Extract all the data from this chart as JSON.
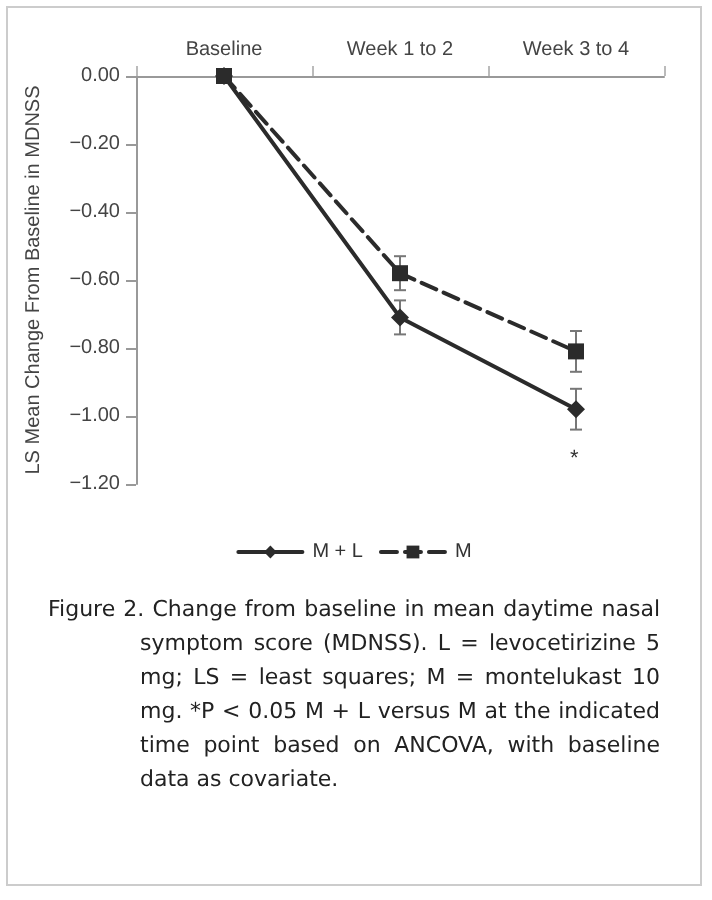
{
  "chart_data": {
    "type": "line",
    "ylabel": "LS Mean Change From Baseline in MDNSS",
    "categories": [
      "Baseline",
      "Week 1 to 2",
      "Week 3 to 4"
    ],
    "series": [
      {
        "name": "M + L",
        "color": "#2b2b2b",
        "marker": "diamond",
        "line_style": "solid",
        "values": [
          0,
          -0.71,
          -0.98
        ],
        "errors": [
          null,
          0.05,
          0.06
        ]
      },
      {
        "name": "M",
        "color": "#2b2b2b",
        "marker": "square",
        "line_style": "dashed",
        "values": [
          0,
          -0.58,
          -0.81
        ],
        "errors": [
          null,
          0.05,
          0.06
        ]
      }
    ],
    "ylim": [
      -1.2,
      0
    ],
    "yticks": [
      {
        "value": 0,
        "label": "0.00"
      },
      {
        "value": -0.2,
        "label": "−0.20"
      },
      {
        "value": -0.4,
        "label": "−0.40"
      },
      {
        "value": -0.6,
        "label": "−0.60"
      },
      {
        "value": -0.8,
        "label": "−0.80"
      },
      {
        "value": -1,
        "label": "−1.00"
      },
      {
        "value": -1.2,
        "label": "−1.20"
      }
    ],
    "grid": false,
    "legend": "bottom",
    "annotations": [
      "*",
      "Figure 2.  Change from baseline in mean daytime nasal symptom score (MDNSS). L = levocetirizine 5 mg; LS = least squares; M = montelukast 10 mg. *P < 0.05 M + L versus M at the indicated time point based on ANCOVA, with baseline data as covariate."
    ]
  }
}
